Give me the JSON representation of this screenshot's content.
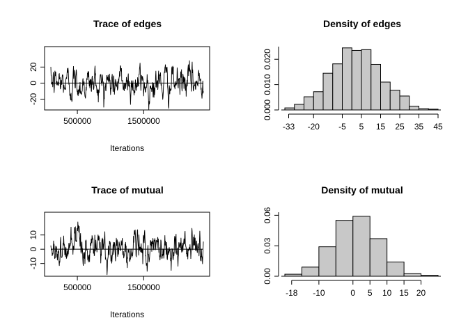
{
  "chart_data": [
    {
      "type": "line",
      "title": "Trace of edges",
      "xlabel": "Iterations",
      "ylabel": "",
      "x_tick_labels": [
        "500000",
        "1500000"
      ],
      "x_ticks": [
        500000,
        1500000
      ],
      "y_tick_labels": [
        "-20",
        "0",
        "20"
      ],
      "y_ticks": [
        -20,
        0,
        20
      ],
      "xlim": [
        100000,
        2400000
      ],
      "ylim": [
        -30,
        42
      ],
      "mean": 0,
      "series_range": [
        -33,
        45
      ]
    },
    {
      "type": "bar",
      "title": "Density of edges",
      "xlabel": "",
      "ylabel": "",
      "x_tick_labels": [
        "-33",
        "-20",
        "-5",
        "5",
        "15",
        "25",
        "35",
        "45"
      ],
      "x_ticks": [
        -33,
        -20,
        -5,
        5,
        15,
        25,
        35,
        45
      ],
      "y_tick_labels": [
        "0.000",
        "0.010",
        "0.020"
      ],
      "y_ticks": [
        0.0,
        0.01,
        0.02
      ],
      "bin_edges": [
        -35,
        -30,
        -25,
        -20,
        -15,
        -10,
        -5,
        0,
        5,
        10,
        15,
        20,
        25,
        30,
        35,
        40,
        45
      ],
      "values": [
        0.0008,
        0.0022,
        0.0052,
        0.0072,
        0.0145,
        0.0182,
        0.0245,
        0.0235,
        0.0238,
        0.018,
        0.011,
        0.0078,
        0.0055,
        0.0015,
        0.0005,
        0.0003
      ],
      "xlim": [
        -35,
        45
      ],
      "ylim": [
        0,
        0.025
      ]
    },
    {
      "type": "line",
      "title": "Trace of mutual",
      "xlabel": "Iterations",
      "ylabel": "",
      "x_tick_labels": [
        "500000",
        "1500000"
      ],
      "x_ticks": [
        500000,
        1500000
      ],
      "y_tick_labels": [
        "-10",
        "0",
        "10"
      ],
      "y_ticks": [
        -10,
        0,
        10
      ],
      "xlim": [
        100000,
        2400000
      ],
      "ylim": [
        -17,
        24
      ],
      "mean": 0,
      "series_range": [
        -18,
        23
      ]
    },
    {
      "type": "bar",
      "title": "Density of mutual",
      "xlabel": "",
      "ylabel": "",
      "x_tick_labels": [
        "-18",
        "-10",
        "0",
        "5",
        "10",
        "15",
        "20"
      ],
      "x_ticks": [
        -18,
        -10,
        0,
        5,
        10,
        15,
        20
      ],
      "y_tick_labels": [
        "0.00",
        "0.03",
        "0.06"
      ],
      "y_ticks": [
        0.0,
        0.03,
        0.06
      ],
      "bin_edges": [
        -20,
        -15,
        -10,
        -5,
        0,
        5,
        10,
        15,
        20,
        25
      ],
      "values": [
        0.002,
        0.009,
        0.029,
        0.055,
        0.059,
        0.037,
        0.014,
        0.0025,
        0.001
      ],
      "xlim": [
        -20,
        25
      ],
      "ylim": [
        0,
        0.063
      ]
    }
  ]
}
